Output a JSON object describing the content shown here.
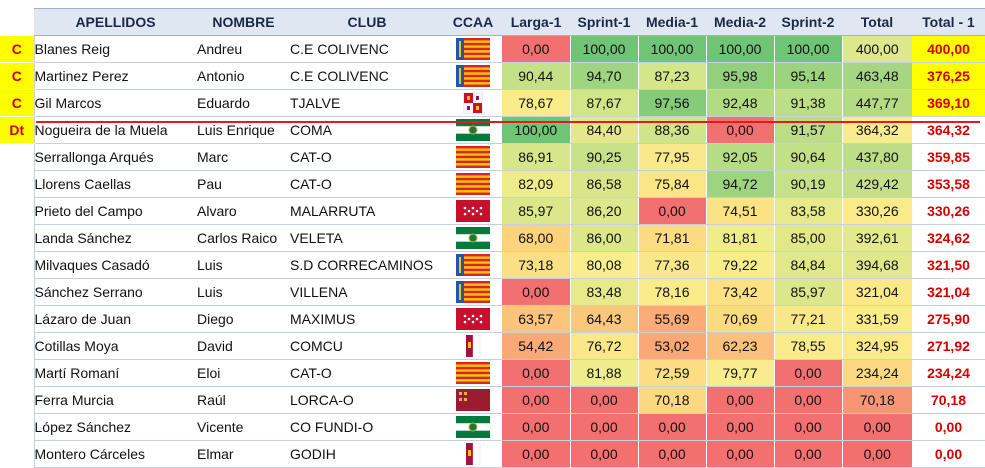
{
  "headers": [
    "APELLIDOS",
    "NOMBRE",
    "CLUB",
    "CCAA",
    "Larga-1",
    "Sprint-1",
    "Media-1",
    "Media-2",
    "Sprint-2",
    "Total",
    "Total - 1"
  ],
  "rows": [
    {
      "badge": "C",
      "apellidos": "Blanes Reig",
      "nombre": "Andreu",
      "club": "C.E COLIVENC",
      "ccaa": "valencia",
      "scores": [
        "0,00",
        "100,00",
        "100,00",
        "100,00",
        "100,00"
      ],
      "total": "400,00",
      "total1": "400,00",
      "highlight": true
    },
    {
      "badge": "C",
      "apellidos": "Martinez Perez",
      "nombre": "Antonio",
      "club": "C.E COLIVENC",
      "ccaa": "valencia",
      "scores": [
        "90,44",
        "94,70",
        "87,23",
        "95,98",
        "95,14"
      ],
      "total": "463,48",
      "total1": "376,25",
      "highlight": true
    },
    {
      "badge": "C",
      "apellidos": "Gil Marcos",
      "nombre": "Eduardo",
      "club": "TJALVE",
      "ccaa": "castilla-leon",
      "scores": [
        "78,67",
        "87,67",
        "97,56",
        "92,48",
        "91,38"
      ],
      "total": "447,77",
      "total1": "369,10",
      "highlight": true
    },
    {
      "badge": "Dt",
      "apellidos": "Nogueira de la Muela",
      "nombre": "Luis Enrique",
      "club": "COMA",
      "ccaa": "andalucia",
      "scores": [
        "100,00",
        "84,40",
        "88,36",
        "0,00",
        "91,57"
      ],
      "total": "364,32",
      "total1": "364,32",
      "highlight": false
    },
    {
      "badge": "",
      "apellidos": "Serrallonga Arqués",
      "nombre": "Marc",
      "club": "CAT-O",
      "ccaa": "cataluna",
      "scores": [
        "86,91",
        "90,25",
        "77,95",
        "92,05",
        "90,64"
      ],
      "total": "437,80",
      "total1": "359,85",
      "highlight": false
    },
    {
      "badge": "",
      "apellidos": "Llorens Caellas",
      "nombre": "Pau",
      "club": "CAT-O",
      "ccaa": "cataluna",
      "scores": [
        "82,09",
        "86,58",
        "75,84",
        "94,72",
        "90,19"
      ],
      "total": "429,42",
      "total1": "353,58",
      "highlight": false
    },
    {
      "badge": "",
      "apellidos": "Prieto del Campo",
      "nombre": "Alvaro",
      "club": "MALARRUTA",
      "ccaa": "madrid",
      "scores": [
        "85,97",
        "86,20",
        "0,00",
        "74,51",
        "83,58"
      ],
      "total": "330,26",
      "total1": "330,26",
      "highlight": false
    },
    {
      "badge": "",
      "apellidos": "Landa Sánchez",
      "nombre": "Carlos Raico",
      "club": "VELETA",
      "ccaa": "andalucia",
      "scores": [
        "68,00",
        "86,00",
        "71,81",
        "81,81",
        "85,00"
      ],
      "total": "392,61",
      "total1": "324,62",
      "highlight": false
    },
    {
      "badge": "",
      "apellidos": "Milvaques Casadó",
      "nombre": "Luis",
      "club": "S.D CORRECAMINOS",
      "ccaa": "valencia",
      "scores": [
        "73,18",
        "80,08",
        "77,36",
        "79,22",
        "84,84"
      ],
      "total": "394,68",
      "total1": "321,50",
      "highlight": false
    },
    {
      "badge": "",
      "apellidos": "Sánchez Serrano",
      "nombre": "Luis",
      "club": "VILLENA",
      "ccaa": "valencia",
      "scores": [
        "0,00",
        "83,48",
        "78,16",
        "73,42",
        "85,97"
      ],
      "total": "321,04",
      "total1": "321,04",
      "highlight": false
    },
    {
      "badge": "",
      "apellidos": "Lázaro de Juan",
      "nombre": "Diego",
      "club": "MAXIMUS",
      "ccaa": "madrid",
      "scores": [
        "63,57",
        "64,43",
        "55,69",
        "70,69",
        "77,21"
      ],
      "total": "331,59",
      "total1": "275,90",
      "highlight": false
    },
    {
      "badge": "",
      "apellidos": "Cotillas Moya",
      "nombre": "David",
      "club": "COMCU",
      "ccaa": "castilla-mancha",
      "scores": [
        "54,42",
        "76,72",
        "53,02",
        "62,23",
        "78,55"
      ],
      "total": "324,95",
      "total1": "271,92",
      "highlight": false
    },
    {
      "badge": "",
      "apellidos": "Martí Romaní",
      "nombre": "Eloi",
      "club": "CAT-O",
      "ccaa": "cataluna",
      "scores": [
        "0,00",
        "81,88",
        "72,59",
        "79,77",
        "0,00"
      ],
      "total": "234,24",
      "total1": "234,24",
      "highlight": false
    },
    {
      "badge": "",
      "apellidos": "Ferra Murcia",
      "nombre": "Raúl",
      "club": "LORCA-O",
      "ccaa": "murcia",
      "scores": [
        "0,00",
        "0,00",
        "70,18",
        "0,00",
        "0,00"
      ],
      "total": "70,18",
      "total1": "70,18",
      "highlight": false
    },
    {
      "badge": "",
      "apellidos": "López Sánchez",
      "nombre": "Vicente",
      "club": "CO FUNDI-O",
      "ccaa": "andalucia",
      "scores": [
        "0,00",
        "0,00",
        "0,00",
        "0,00",
        "0,00"
      ],
      "total": "0,00",
      "total1": "0,00",
      "highlight": false
    },
    {
      "badge": "",
      "apellidos": "Montero Cárceles",
      "nombre": "Elmar",
      "club": "GODIH",
      "ccaa": "castilla-mancha",
      "scores": [
        "0,00",
        "0,00",
        "0,00",
        "0,00",
        "0,00"
      ],
      "total": "0,00",
      "total1": "0,00",
      "highlight": false
    }
  ]
}
